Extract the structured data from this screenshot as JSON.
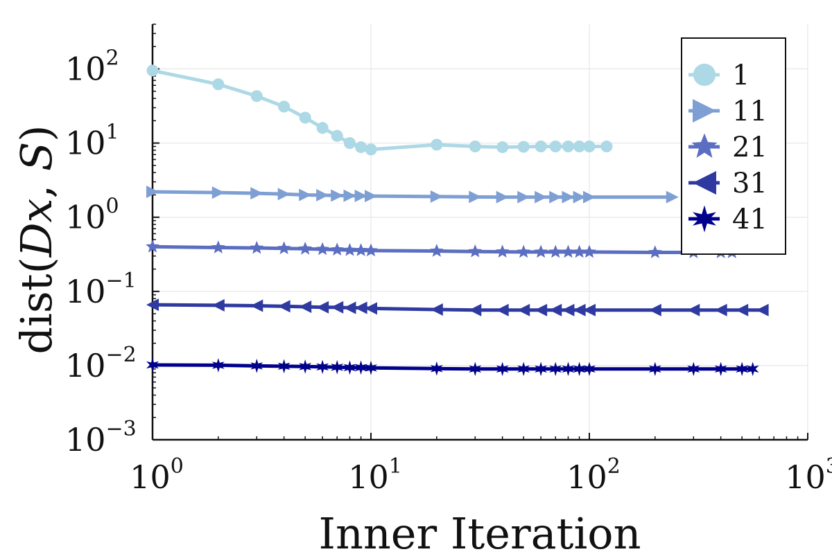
{
  "chart_data": {
    "type": "line",
    "xscale": "log",
    "yscale": "log",
    "xlim": [
      1,
      1000
    ],
    "ylim": [
      0.001,
      400
    ],
    "xlabel": "Inner Iteration",
    "ylabel": "dist(Dx, S)",
    "ylabel_parts": {
      "pre": "dist(",
      "D": "D",
      "x": "x",
      "comma": ", ",
      "S": "S",
      "post": ")"
    },
    "grid": true,
    "legend_position": "top-right",
    "x_ticks": [
      {
        "value": 1,
        "base": "10",
        "exp": "0"
      },
      {
        "value": 10,
        "base": "10",
        "exp": "1"
      },
      {
        "value": 100,
        "base": "10",
        "exp": "2"
      },
      {
        "value": 1000,
        "base": "10",
        "exp": "3"
      }
    ],
    "y_ticks": [
      {
        "value": 0.001,
        "base": "10",
        "exp": "−3"
      },
      {
        "value": 0.01,
        "base": "10",
        "exp": "−2"
      },
      {
        "value": 0.1,
        "base": "10",
        "exp": "−1"
      },
      {
        "value": 1,
        "base": "10",
        "exp": "0"
      },
      {
        "value": 10,
        "base": "10",
        "exp": "1"
      },
      {
        "value": 100,
        "base": "10",
        "exp": "2"
      }
    ],
    "series": [
      {
        "name": "1",
        "color": "#add8e6",
        "marker": "circle",
        "x": [
          1,
          2,
          3,
          4,
          5,
          6,
          7,
          8,
          9,
          10,
          20,
          30,
          40,
          50,
          60,
          70,
          80,
          90,
          100,
          120
        ],
        "y": [
          95,
          62,
          43,
          31,
          22,
          16,
          12.5,
          10,
          8.8,
          8.2,
          9.5,
          9.0,
          8.8,
          8.9,
          9.0,
          9.0,
          9.0,
          9.0,
          9.0,
          9.0
        ]
      },
      {
        "name": "11",
        "color": "#7e9fd3",
        "marker": "triangle-right",
        "x": [
          1,
          2,
          3,
          4,
          5,
          6,
          7,
          8,
          9,
          10,
          20,
          30,
          40,
          50,
          60,
          70,
          80,
          90,
          100,
          240
        ],
        "y": [
          2.2,
          2.15,
          2.1,
          2.05,
          2.0,
          1.98,
          1.96,
          1.95,
          1.94,
          1.93,
          1.9,
          1.88,
          1.87,
          1.87,
          1.87,
          1.87,
          1.87,
          1.87,
          1.87,
          1.87
        ]
      },
      {
        "name": "21",
        "color": "#5b6ec1",
        "marker": "star5",
        "x": [
          1,
          2,
          3,
          4,
          5,
          6,
          7,
          8,
          9,
          10,
          20,
          30,
          40,
          50,
          60,
          70,
          80,
          90,
          100,
          200,
          300,
          400,
          450
        ],
        "y": [
          0.4,
          0.39,
          0.385,
          0.38,
          0.375,
          0.37,
          0.365,
          0.36,
          0.358,
          0.355,
          0.35,
          0.345,
          0.342,
          0.34,
          0.34,
          0.34,
          0.34,
          0.34,
          0.34,
          0.335,
          0.335,
          0.335,
          0.335
        ]
      },
      {
        "name": "31",
        "color": "#2e3aa0",
        "marker": "triangle-left",
        "x": [
          1,
          2,
          3,
          4,
          5,
          6,
          7,
          8,
          9,
          10,
          20,
          30,
          40,
          50,
          60,
          70,
          80,
          90,
          100,
          200,
          300,
          400,
          500,
          620
        ],
        "y": [
          0.066,
          0.065,
          0.064,
          0.063,
          0.062,
          0.061,
          0.061,
          0.06,
          0.06,
          0.059,
          0.057,
          0.056,
          0.056,
          0.056,
          0.056,
          0.056,
          0.056,
          0.056,
          0.056,
          0.056,
          0.056,
          0.056,
          0.056,
          0.056
        ]
      },
      {
        "name": "41",
        "color": "#00008b",
        "marker": "star6",
        "x": [
          1,
          2,
          3,
          4,
          5,
          6,
          7,
          8,
          9,
          10,
          20,
          30,
          40,
          50,
          60,
          70,
          80,
          90,
          100,
          200,
          300,
          400,
          500,
          560
        ],
        "y": [
          0.0102,
          0.0101,
          0.0099,
          0.0098,
          0.0097,
          0.0096,
          0.0095,
          0.0094,
          0.0094,
          0.0093,
          0.0091,
          0.009,
          0.009,
          0.009,
          0.009,
          0.009,
          0.009,
          0.009,
          0.009,
          0.009,
          0.009,
          0.009,
          0.009,
          0.009
        ]
      }
    ]
  }
}
